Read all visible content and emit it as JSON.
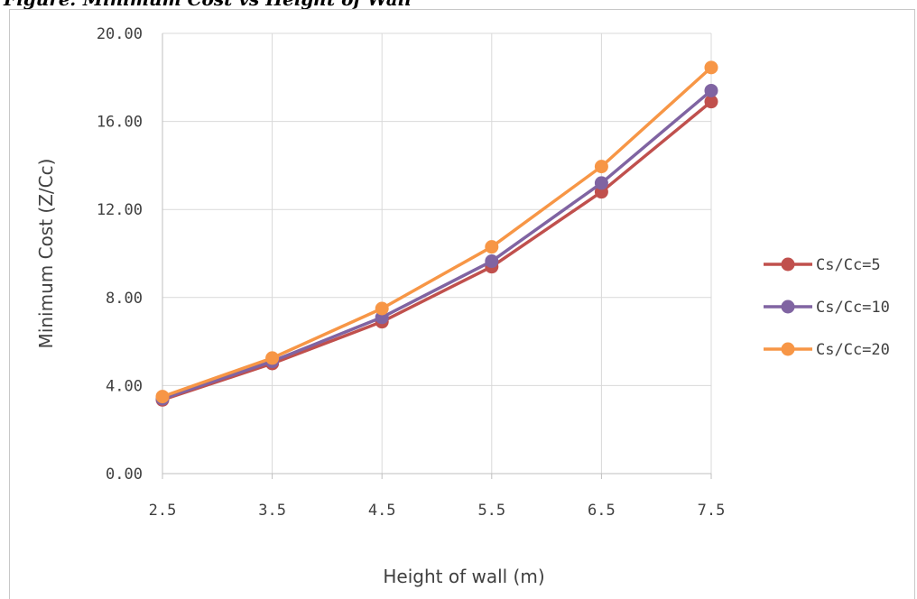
{
  "caption": "Figure: Minimum Cost vs Height of Wall",
  "chart_data": {
    "type": "line",
    "title": "",
    "xlabel": "Height of wall (m)",
    "ylabel": "Minimum Cost (Z/Cc)",
    "categories": [
      "2.5",
      "3.5",
      "4.5",
      "5.5",
      "6.5",
      "7.5"
    ],
    "ylim": [
      0,
      20
    ],
    "yticks": [
      "0.00",
      "4.00",
      "8.00",
      "12.00",
      "16.00",
      "20.00"
    ],
    "grid": true,
    "legend_position": "right",
    "series": [
      {
        "name": "Cs/Cc=5",
        "color": "#C0504D",
        "values": [
          3.35,
          5.0,
          6.9,
          9.4,
          12.8,
          16.9
        ]
      },
      {
        "name": "Cs/Cc=10",
        "color": "#8064A2",
        "values": [
          3.4,
          5.1,
          7.1,
          9.65,
          13.2,
          17.4
        ]
      },
      {
        "name": "Cs/Cc=20",
        "color": "#F79646",
        "values": [
          3.5,
          5.25,
          7.5,
          10.3,
          13.95,
          18.45
        ]
      }
    ]
  }
}
